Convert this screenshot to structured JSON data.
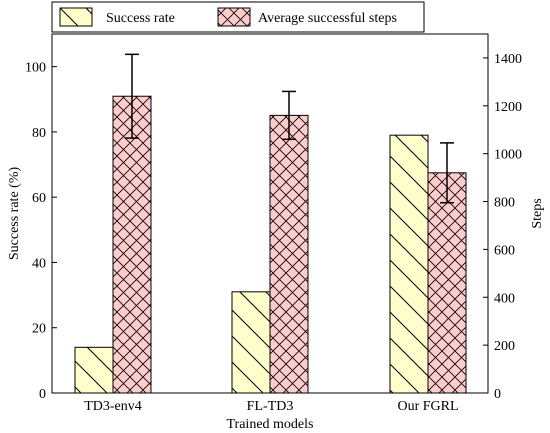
{
  "chart_data": {
    "type": "bar",
    "xlabel": "Trained models",
    "ylabel": "Success rate (%)",
    "ylabel_right": "Steps",
    "categories": [
      "TD3-env4",
      "FL-TD3",
      "Our FGRL"
    ],
    "ylim": [
      0,
      110
    ],
    "ylim_right": [
      0,
      1500
    ],
    "yticks": [
      0,
      20,
      40,
      60,
      80,
      100
    ],
    "yticks_right": [
      0,
      200,
      400,
      600,
      800,
      1000,
      1200,
      1400
    ],
    "legend_position": "top",
    "series": [
      {
        "name": "Success rate",
        "axis": "left",
        "values": [
          14,
          31,
          79
        ],
        "color": "#ffffcc",
        "hatch": "back-diagonal"
      },
      {
        "name": "Average successful steps",
        "axis": "right",
        "values": [
          1240,
          1160,
          920
        ],
        "error": [
          175,
          100,
          125
        ],
        "color": "#ffcccc",
        "hatch": "crosshatch"
      }
    ]
  }
}
